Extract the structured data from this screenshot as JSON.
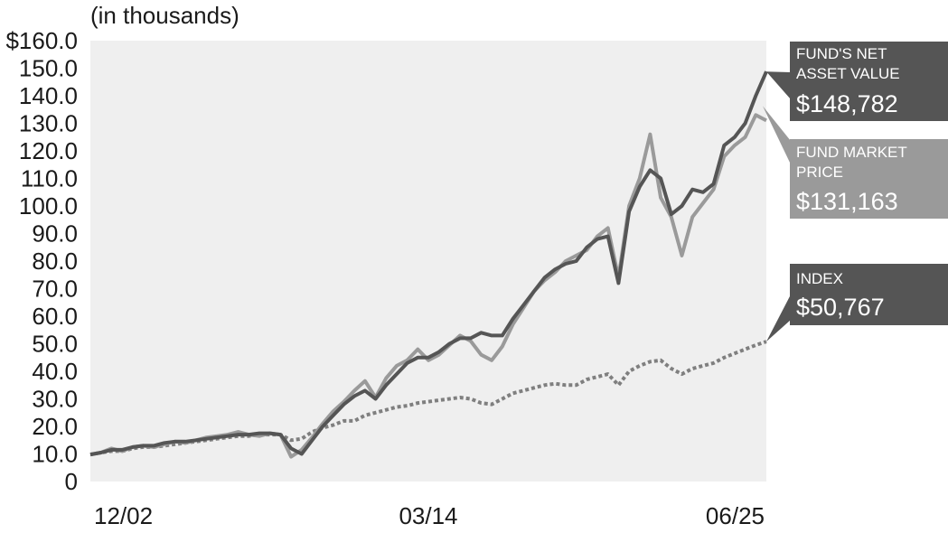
{
  "chart_data": {
    "type": "line",
    "y_unit_label": "(in thousands)",
    "ylim": [
      0,
      160
    ],
    "y_ticks": [
      "$160.0",
      "150.0",
      "140.0",
      "130.0",
      "120.0",
      "110.0",
      "100.0",
      "90.0",
      "80.0",
      "70.0",
      "60.0",
      "50.0",
      "40.0",
      "30.0",
      "20.0",
      "10.0",
      "0"
    ],
    "x_ticks": [
      "12/02",
      "03/14",
      "06/25"
    ],
    "grid": false,
    "series": [
      {
        "name": "FUND MARKET PRICE",
        "color": "#9a9a9a",
        "style": "solid",
        "ending_value": "$131,163",
        "values": [
          9.8,
          10.5,
          12.0,
          11.0,
          12.5,
          13.0,
          12.5,
          13.5,
          14.5,
          14.0,
          15.0,
          16.0,
          16.5,
          17.0,
          18.0,
          17.0,
          16.5,
          17.5,
          17.0,
          9.0,
          11.5,
          16.0,
          21.0,
          25.5,
          29.0,
          33.0,
          36.5,
          30.5,
          37.5,
          42.0,
          44.0,
          48.0,
          44.0,
          46.0,
          49.5,
          53.0,
          51.0,
          46.0,
          44.0,
          49.0,
          57.0,
          63.0,
          69.0,
          73.0,
          76.0,
          80.0,
          82.0,
          84.0,
          89.0,
          92.0,
          74.0,
          100.0,
          110.0,
          126.0,
          103.0,
          96.0,
          82.0,
          96.0,
          101.0,
          106.0,
          118.0,
          122.0,
          125.0,
          133.0,
          131.0
        ]
      },
      {
        "name": "FUND'S NET ASSET VALUE",
        "color": "#555555",
        "style": "solid",
        "ending_value": "$148,782",
        "values": [
          9.8,
          10.5,
          11.5,
          11.5,
          12.5,
          13.0,
          13.0,
          14.0,
          14.5,
          14.5,
          15.0,
          15.5,
          16.0,
          16.5,
          17.0,
          17.0,
          17.5,
          17.5,
          17.0,
          12.0,
          10.0,
          15.0,
          20.0,
          24.0,
          28.0,
          31.0,
          33.0,
          30.0,
          35.0,
          39.0,
          43.0,
          45.0,
          45.0,
          47.0,
          50.0,
          52.0,
          52.0,
          54.0,
          53.0,
          53.0,
          59.0,
          64.0,
          69.0,
          74.0,
          77.0,
          79.0,
          80.0,
          85.0,
          88.0,
          89.0,
          72.0,
          98.0,
          107.0,
          113.0,
          110.0,
          97.0,
          100.0,
          106.0,
          105.0,
          108.0,
          122.0,
          125.0,
          130.0,
          140.0,
          148.8
        ]
      },
      {
        "name": "INDEX",
        "color": "#7f7f7f",
        "style": "dotted",
        "ending_value": "$50,767",
        "values": [
          9.8,
          10.5,
          11.0,
          11.0,
          12.0,
          12.5,
          12.5,
          13.0,
          13.5,
          14.0,
          14.5,
          15.0,
          15.5,
          16.0,
          16.5,
          16.5,
          17.0,
          17.0,
          17.0,
          15.0,
          15.5,
          18.0,
          19.5,
          20.5,
          22.0,
          22.0,
          24.0,
          25.0,
          26.0,
          27.0,
          27.5,
          28.5,
          29.0,
          29.5,
          30.0,
          30.5,
          30.0,
          28.5,
          28.0,
          30.0,
          32.0,
          33.0,
          34.0,
          35.0,
          35.5,
          35.0,
          35.0,
          37.0,
          38.0,
          39.0,
          35.0,
          40.0,
          42.0,
          43.5,
          44.0,
          41.0,
          39.0,
          41.0,
          42.0,
          43.0,
          45.0,
          46.5,
          48.0,
          49.5,
          50.8
        ]
      }
    ]
  }
}
